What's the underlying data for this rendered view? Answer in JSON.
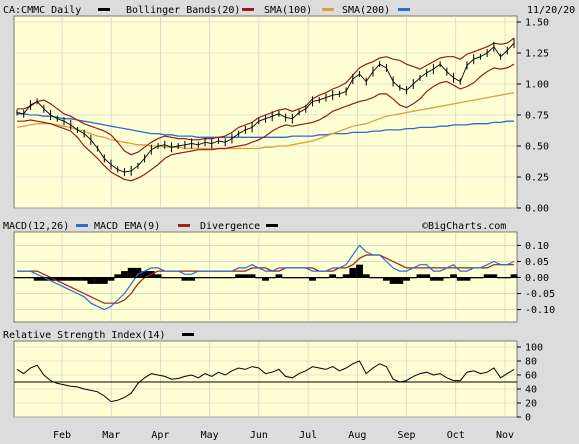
{
  "header": {
    "symbol_label": "CA:CMMC Daily",
    "bollinger_label": "Bollinger Bands(20)",
    "sma100_label": "SMA(100)",
    "sma200_label": "SMA(200)",
    "date": "11/20/20"
  },
  "macd_header": {
    "macd_label": "MACD(12,26)",
    "ema_label": "MACD EMA(9)",
    "divergence_label": "Divergence",
    "watermark": "©BigCharts.com"
  },
  "rsi_header": {
    "label": "Relative Strength Index(14)"
  },
  "colors": {
    "background": "#dcdcdc",
    "plot_bg": "#ffffd4",
    "price": "#000000",
    "bollinger": "#9b1a1a",
    "sma100": "#d8a244",
    "sma200": "#2a6fc9",
    "macd": "#2a6fc9",
    "macd_ema": "#a02020",
    "divergence": "#000000"
  },
  "chart_data": [
    {
      "type": "line",
      "name": "price",
      "months": [
        "Feb",
        "Mar",
        "Apr",
        "May",
        "Jun",
        "Jul",
        "Aug",
        "Sep",
        "Oct",
        "Nov"
      ],
      "ylim": [
        0,
        1.5
      ],
      "yticks": [
        "1.50",
        "1.25",
        "1.00",
        "0.75",
        "0.50",
        "0.25",
        "0.00"
      ],
      "series": [
        {
          "name": "CA:CMMC Daily",
          "values": [
            0.77,
            0.76,
            0.83,
            0.86,
            0.8,
            0.75,
            0.72,
            0.7,
            0.67,
            0.63,
            0.6,
            0.55,
            0.48,
            0.4,
            0.35,
            0.31,
            0.29,
            0.3,
            0.34,
            0.4,
            0.47,
            0.5,
            0.51,
            0.49,
            0.5,
            0.51,
            0.52,
            0.51,
            0.53,
            0.52,
            0.54,
            0.53,
            0.56,
            0.6,
            0.63,
            0.65,
            0.7,
            0.72,
            0.74,
            0.76,
            0.73,
            0.72,
            0.77,
            0.8,
            0.86,
            0.87,
            0.89,
            0.91,
            0.92,
            0.94,
            1.04,
            1.08,
            1.02,
            1.1,
            1.16,
            1.13,
            1.02,
            0.97,
            0.95,
            1.0,
            1.05,
            1.09,
            1.12,
            1.16,
            1.1,
            1.05,
            1.02,
            1.15,
            1.2,
            1.22,
            1.25,
            1.3,
            1.22,
            1.27,
            1.33
          ]
        },
        {
          "name": "Bollinger upper",
          "values": [
            0.8,
            0.8,
            0.82,
            0.86,
            0.87,
            0.84,
            0.8,
            0.76,
            0.74,
            0.71,
            0.68,
            0.66,
            0.64,
            0.62,
            0.59,
            0.53,
            0.46,
            0.43,
            0.45,
            0.49,
            0.53,
            0.56,
            0.58,
            0.57,
            0.56,
            0.56,
            0.55,
            0.55,
            0.56,
            0.56,
            0.57,
            0.58,
            0.61,
            0.65,
            0.67,
            0.69,
            0.73,
            0.75,
            0.77,
            0.79,
            0.8,
            0.78,
            0.8,
            0.82,
            0.88,
            0.91,
            0.93,
            0.96,
            0.98,
            1.01,
            1.07,
            1.13,
            1.16,
            1.18,
            1.21,
            1.22,
            1.2,
            1.19,
            1.16,
            1.14,
            1.12,
            1.15,
            1.18,
            1.21,
            1.22,
            1.22,
            1.2,
            1.24,
            1.26,
            1.28,
            1.3,
            1.33,
            1.32,
            1.33,
            1.37
          ]
        },
        {
          "name": "Bollinger lower",
          "values": [
            0.7,
            0.7,
            0.71,
            0.7,
            0.69,
            0.68,
            0.66,
            0.64,
            0.62,
            0.57,
            0.5,
            0.45,
            0.4,
            0.34,
            0.29,
            0.26,
            0.23,
            0.22,
            0.24,
            0.27,
            0.31,
            0.35,
            0.4,
            0.43,
            0.44,
            0.45,
            0.46,
            0.47,
            0.47,
            0.47,
            0.48,
            0.48,
            0.49,
            0.5,
            0.51,
            0.53,
            0.55,
            0.58,
            0.62,
            0.65,
            0.67,
            0.66,
            0.67,
            0.68,
            0.69,
            0.71,
            0.74,
            0.78,
            0.8,
            0.82,
            0.84,
            0.86,
            0.87,
            0.89,
            0.92,
            0.92,
            0.88,
            0.83,
            0.81,
            0.84,
            0.88,
            0.94,
            0.98,
            1.01,
            1.02,
            0.99,
            0.96,
            0.98,
            1.01,
            1.06,
            1.1,
            1.13,
            1.12,
            1.13,
            1.16
          ]
        },
        {
          "name": "SMA(100)",
          "values": [
            0.65,
            0.66,
            0.67,
            0.68,
            0.68,
            0.68,
            0.67,
            0.66,
            0.65,
            0.63,
            0.62,
            0.6,
            0.58,
            0.57,
            0.55,
            0.54,
            0.53,
            0.52,
            0.51,
            0.51,
            0.5,
            0.5,
            0.49,
            0.49,
            0.49,
            0.48,
            0.48,
            0.48,
            0.48,
            0.48,
            0.48,
            0.48,
            0.48,
            0.48,
            0.48,
            0.48,
            0.48,
            0.49,
            0.49,
            0.5,
            0.5,
            0.51,
            0.52,
            0.53,
            0.54,
            0.56,
            0.58,
            0.6,
            0.62,
            0.64,
            0.66,
            0.67,
            0.68,
            0.7,
            0.72,
            0.74,
            0.75,
            0.76,
            0.77,
            0.78,
            0.79,
            0.8,
            0.81,
            0.82,
            0.83,
            0.84,
            0.85,
            0.86,
            0.87,
            0.88,
            0.89,
            0.9,
            0.91,
            0.92,
            0.93
          ]
        },
        {
          "name": "SMA(200)",
          "values": [
            0.76,
            0.76,
            0.75,
            0.75,
            0.74,
            0.74,
            0.73,
            0.72,
            0.72,
            0.71,
            0.7,
            0.69,
            0.68,
            0.67,
            0.66,
            0.65,
            0.64,
            0.63,
            0.62,
            0.61,
            0.6,
            0.6,
            0.59,
            0.59,
            0.58,
            0.58,
            0.58,
            0.57,
            0.57,
            0.57,
            0.57,
            0.57,
            0.57,
            0.57,
            0.57,
            0.57,
            0.57,
            0.57,
            0.57,
            0.57,
            0.57,
            0.58,
            0.58,
            0.58,
            0.58,
            0.59,
            0.59,
            0.6,
            0.6,
            0.6,
            0.61,
            0.61,
            0.61,
            0.62,
            0.62,
            0.63,
            0.63,
            0.63,
            0.64,
            0.64,
            0.65,
            0.65,
            0.65,
            0.66,
            0.66,
            0.67,
            0.67,
            0.67,
            0.68,
            0.68,
            0.68,
            0.69,
            0.69,
            0.7,
            0.7
          ]
        }
      ]
    },
    {
      "type": "line",
      "name": "macd",
      "ylim": [
        -0.12,
        0.12
      ],
      "yticks": [
        "0.10",
        "0.05",
        "0.00",
        "-0.05",
        "-0.10"
      ],
      "series": [
        {
          "name": "MACD(12,26)",
          "values": [
            0.02,
            0.02,
            0.02,
            0.01,
            0.0,
            -0.01,
            -0.02,
            -0.03,
            -0.04,
            -0.05,
            -0.06,
            -0.08,
            -0.09,
            -0.1,
            -0.09,
            -0.07,
            -0.05,
            -0.02,
            0.01,
            0.02,
            0.03,
            0.03,
            0.02,
            0.02,
            0.02,
            0.01,
            0.01,
            0.02,
            0.02,
            0.02,
            0.02,
            0.02,
            0.02,
            0.03,
            0.03,
            0.04,
            0.03,
            0.02,
            0.02,
            0.03,
            0.03,
            0.03,
            0.03,
            0.03,
            0.02,
            0.02,
            0.02,
            0.03,
            0.03,
            0.04,
            0.07,
            0.1,
            0.08,
            0.07,
            0.07,
            0.05,
            0.03,
            0.02,
            0.02,
            0.03,
            0.04,
            0.04,
            0.02,
            0.02,
            0.03,
            0.04,
            0.02,
            0.02,
            0.03,
            0.03,
            0.04,
            0.05,
            0.04,
            0.04,
            0.05
          ]
        },
        {
          "name": "MACD EMA(9)",
          "values": [
            0.02,
            0.02,
            0.02,
            0.02,
            0.01,
            0.0,
            -0.01,
            -0.02,
            -0.03,
            -0.04,
            -0.05,
            -0.06,
            -0.07,
            -0.08,
            -0.08,
            -0.08,
            -0.07,
            -0.05,
            -0.02,
            0.0,
            0.01,
            0.02,
            0.02,
            0.02,
            0.02,
            0.02,
            0.02,
            0.02,
            0.02,
            0.02,
            0.02,
            0.02,
            0.02,
            0.02,
            0.02,
            0.03,
            0.03,
            0.03,
            0.02,
            0.02,
            0.03,
            0.03,
            0.03,
            0.03,
            0.03,
            0.02,
            0.02,
            0.02,
            0.03,
            0.03,
            0.04,
            0.06,
            0.07,
            0.07,
            0.07,
            0.06,
            0.05,
            0.04,
            0.03,
            0.03,
            0.03,
            0.03,
            0.03,
            0.03,
            0.03,
            0.03,
            0.03,
            0.03,
            0.03,
            0.03,
            0.03,
            0.04,
            0.04,
            0.04,
            0.04
          ]
        },
        {
          "name": "Divergence",
          "values": [
            0.0,
            0.0,
            0.0,
            -0.01,
            -0.01,
            -0.01,
            -0.01,
            -0.01,
            -0.01,
            -0.01,
            -0.01,
            -0.02,
            -0.02,
            -0.02,
            -0.01,
            0.01,
            0.02,
            0.03,
            0.03,
            0.02,
            0.02,
            0.01,
            0.0,
            0.0,
            0.0,
            -0.01,
            -0.01,
            0.0,
            0.0,
            0.0,
            0.0,
            0.0,
            0.0,
            0.01,
            0.01,
            0.01,
            0.0,
            -0.01,
            0.0,
            0.01,
            0.0,
            0.0,
            0.0,
            0.0,
            -0.01,
            0.0,
            0.0,
            0.01,
            0.0,
            0.01,
            0.03,
            0.04,
            0.01,
            0.0,
            0.0,
            -0.01,
            -0.02,
            -0.02,
            -0.01,
            0.0,
            0.01,
            0.01,
            -0.01,
            -0.01,
            0.0,
            0.01,
            -0.01,
            -0.01,
            0.0,
            0.0,
            0.01,
            0.01,
            0.0,
            0.0,
            0.01
          ]
        }
      ]
    },
    {
      "type": "line",
      "name": "rsi",
      "ylim": [
        0,
        100
      ],
      "yticks": [
        "100",
        "80",
        "60",
        "40",
        "20",
        "0"
      ],
      "reference_line": 50,
      "series": [
        {
          "name": "Relative Strength Index(14)",
          "values": [
            68,
            62,
            70,
            74,
            60,
            52,
            48,
            46,
            44,
            43,
            40,
            38,
            36,
            30,
            22,
            24,
            28,
            34,
            48,
            56,
            62,
            60,
            58,
            54,
            55,
            58,
            60,
            56,
            62,
            58,
            64,
            60,
            66,
            70,
            68,
            72,
            70,
            62,
            64,
            68,
            58,
            56,
            62,
            66,
            72,
            70,
            68,
            72,
            66,
            70,
            76,
            80,
            62,
            70,
            76,
            72,
            54,
            50,
            52,
            58,
            62,
            64,
            60,
            62,
            56,
            52,
            52,
            64,
            66,
            62,
            64,
            70,
            56,
            62,
            68
          ]
        }
      ]
    }
  ]
}
